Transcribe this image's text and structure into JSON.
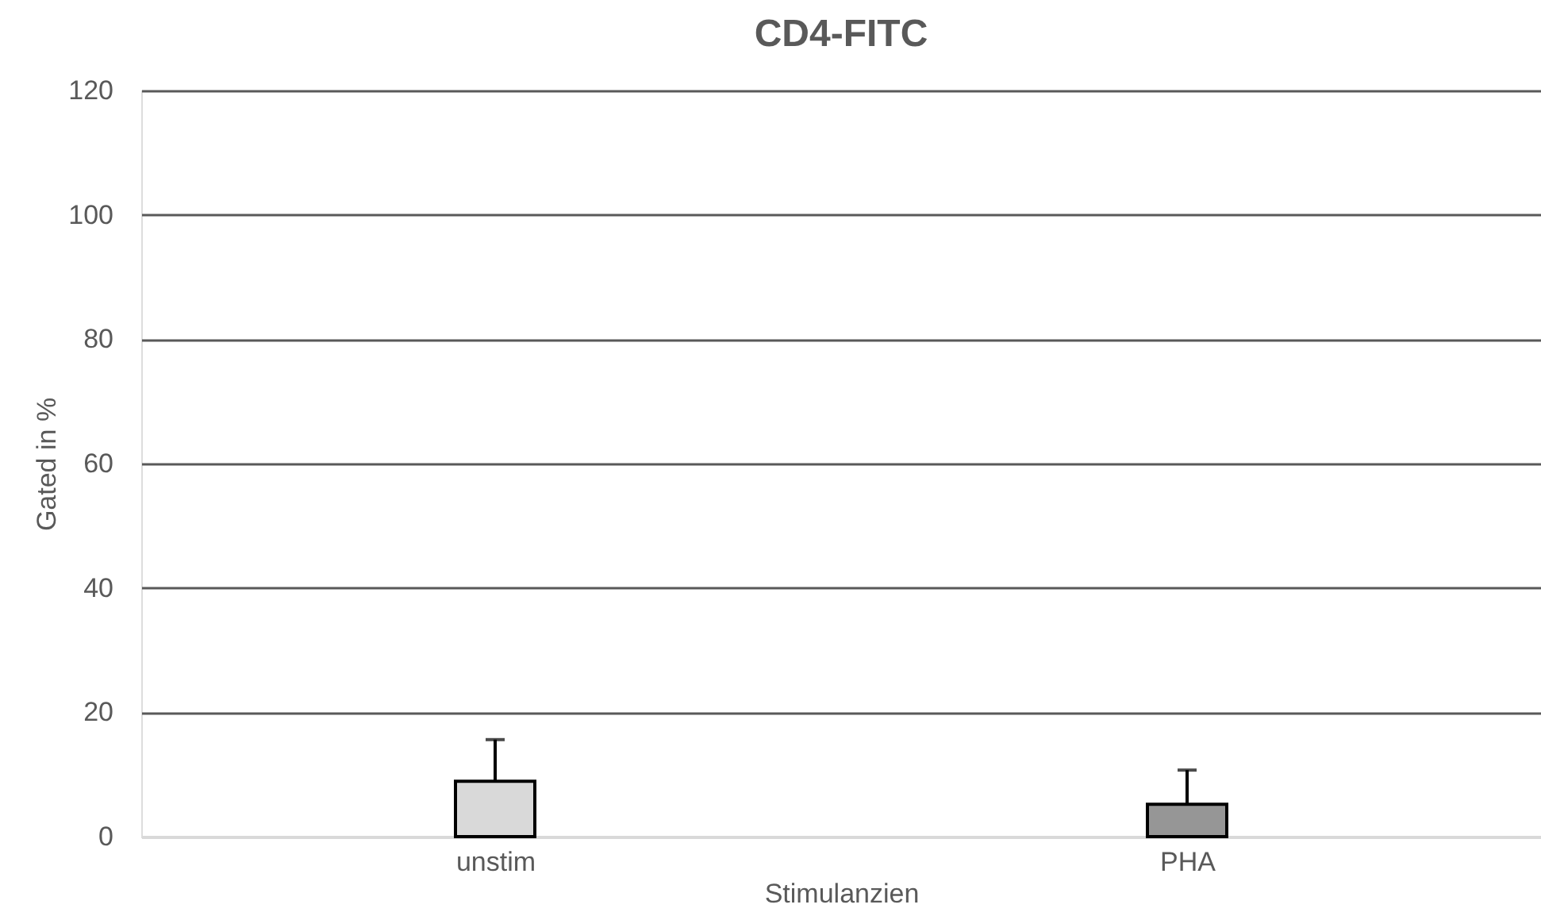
{
  "chart_data": {
    "type": "bar",
    "title": "CD4-FITC",
    "xlabel": "Stimulanzien",
    "ylabel": "Gated in %",
    "categories": [
      "unstim",
      "PHA"
    ],
    "values": [
      8.9,
      5.2
    ],
    "colors": [
      "#d9d9d9",
      "#969696"
    ],
    "errors": [
      [
        8.9,
        15.6
      ],
      [
        5.2,
        10.7
      ]
    ],
    "ylim": [
      0,
      120
    ],
    "yticks": [
      0,
      20,
      40,
      60,
      80,
      100,
      120
    ],
    "grid": "y"
  }
}
